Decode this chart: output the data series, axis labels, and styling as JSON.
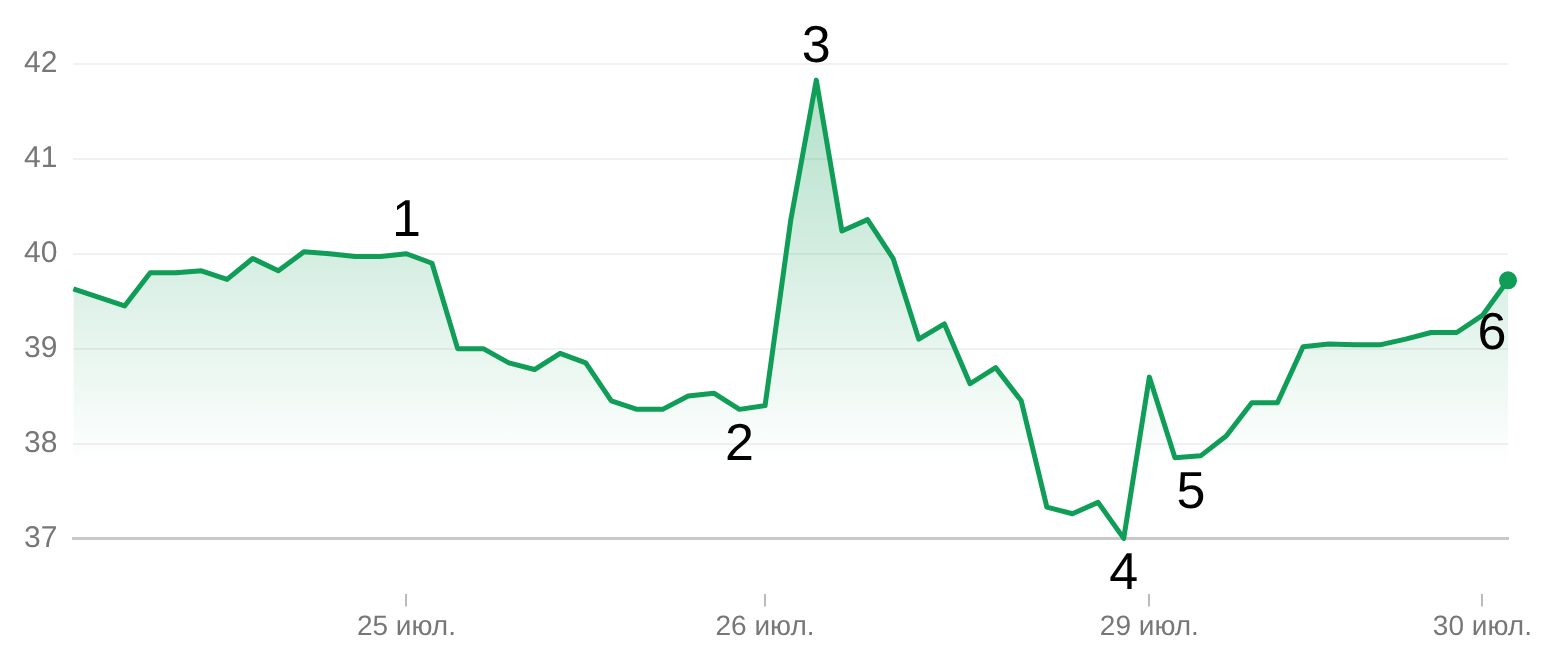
{
  "chart_data": {
    "type": "area",
    "categories": [
      null,
      null,
      null,
      null,
      null,
      null,
      null,
      null,
      null,
      null,
      null,
      null,
      null,
      "25 июл.",
      null,
      null,
      null,
      null,
      null,
      null,
      null,
      null,
      null,
      null,
      null,
      null,
      null,
      "26 июл.",
      null,
      null,
      null,
      null,
      null,
      null,
      null,
      null,
      null,
      null,
      null,
      null,
      null,
      null,
      "29 июл.",
      null,
      null,
      null,
      null,
      null,
      null,
      null,
      null,
      null,
      null,
      null,
      null,
      "30 июл.",
      null
    ],
    "series": [
      {
        "color": "#0f9d58",
        "values": [
          39.63,
          39.54,
          39.45,
          39.8,
          39.8,
          39.82,
          39.73,
          39.95,
          39.82,
          40.02,
          40.0,
          39.97,
          39.97,
          40.0,
          39.9,
          39.0,
          39.0,
          38.85,
          38.78,
          38.95,
          38.85,
          38.45,
          38.36,
          38.36,
          38.5,
          38.53,
          38.36,
          38.4,
          40.35,
          41.83,
          40.24,
          40.36,
          39.95,
          39.1,
          39.26,
          38.63,
          38.8,
          38.45,
          37.33,
          37.26,
          37.38,
          37.0,
          38.7,
          37.85,
          37.87,
          38.08,
          38.43,
          38.43,
          39.02,
          39.05,
          39.04,
          39.04,
          39.1,
          39.17,
          39.17,
          39.35,
          39.72
        ]
      }
    ],
    "ylim": [
      37,
      42
    ],
    "yticks": [
      37,
      38,
      39,
      40,
      41,
      42
    ],
    "grid": "y",
    "marker": "none",
    "legend": false,
    "annotations": [
      {
        "text": "1",
        "x": "25 июл.",
        "y": 40.0
      },
      {
        "text": "2",
        "y": 38.36
      },
      {
        "text": "3",
        "y": 41.83
      },
      {
        "text": "4",
        "y": 37.0
      },
      {
        "text": "5",
        "y": 37.85
      },
      {
        "text": "6",
        "y": 39.72
      }
    ]
  }
}
